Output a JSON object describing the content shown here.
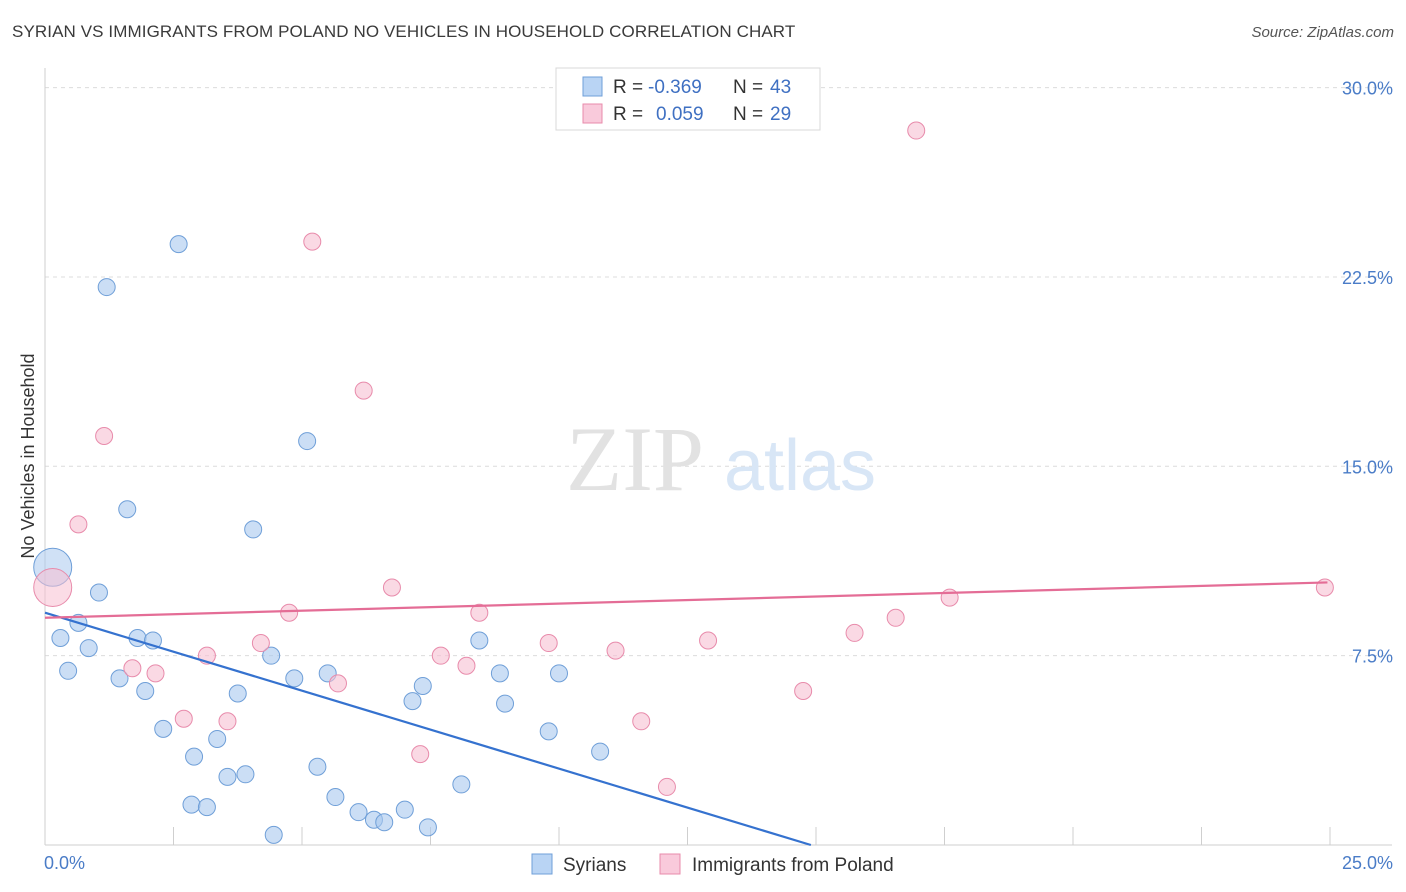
{
  "header": {
    "title": "SYRIAN VS IMMIGRANTS FROM POLAND NO VEHICLES IN HOUSEHOLD CORRELATION CHART",
    "source": "Source: ZipAtlas.com"
  },
  "watermark": {
    "zip": "ZIP",
    "atlas": "atlas"
  },
  "chart_data": {
    "type": "scatter",
    "title": "SYRIAN VS IMMIGRANTS FROM POLAND NO VEHICLES IN HOUSEHOLD CORRELATION CHART",
    "xlabel": "",
    "ylabel": "No Vehicles in Household",
    "xlim": [
      0,
      25
    ],
    "ylim": [
      0,
      30.5
    ],
    "x_tick_labels": {
      "min": "0.0%",
      "max": "25.0%"
    },
    "y_ticks": [
      {
        "value": 7.5,
        "label": "7.5%"
      },
      {
        "value": 15.0,
        "label": "15.0%"
      },
      {
        "value": 22.5,
        "label": "22.5%"
      },
      {
        "value": 30.0,
        "label": "30.0%"
      }
    ],
    "grid": true,
    "legend_position": "top-center",
    "legend": [
      {
        "r_label": "R =",
        "r_value": "-0.369",
        "n_label": "N =",
        "n_value": "43"
      },
      {
        "r_label": "R =",
        "r_value": "0.059",
        "n_label": "N =",
        "n_value": "29"
      }
    ],
    "series": [
      {
        "name": "Syrians",
        "color": "#a9c8ef",
        "edge": "#6f9fd8",
        "trend_color": "#3572cf",
        "trend": {
          "x0": 0.0,
          "y0": 9.2,
          "x1": 14.9,
          "y1": 0.0
        },
        "points": [
          {
            "x": 0.15,
            "y": 11.0,
            "big": true
          },
          {
            "x": 0.3,
            "y": 8.2
          },
          {
            "x": 0.45,
            "y": 6.9
          },
          {
            "x": 0.65,
            "y": 8.8
          },
          {
            "x": 0.85,
            "y": 7.8
          },
          {
            "x": 1.05,
            "y": 10.0
          },
          {
            "x": 1.2,
            "y": 22.1
          },
          {
            "x": 1.45,
            "y": 6.6
          },
          {
            "x": 1.6,
            "y": 13.3
          },
          {
            "x": 1.8,
            "y": 8.2
          },
          {
            "x": 1.95,
            "y": 6.1
          },
          {
            "x": 2.1,
            "y": 8.1
          },
          {
            "x": 2.3,
            "y": 4.6
          },
          {
            "x": 2.6,
            "y": 23.8
          },
          {
            "x": 2.85,
            "y": 1.6
          },
          {
            "x": 2.9,
            "y": 3.5
          },
          {
            "x": 3.15,
            "y": 1.5
          },
          {
            "x": 3.35,
            "y": 4.2
          },
          {
            "x": 3.55,
            "y": 2.7
          },
          {
            "x": 3.75,
            "y": 6.0
          },
          {
            "x": 3.9,
            "y": 2.8
          },
          {
            "x": 4.05,
            "y": 12.5
          },
          {
            "x": 4.4,
            "y": 7.5
          },
          {
            "x": 4.45,
            "y": 0.4
          },
          {
            "x": 4.85,
            "y": 6.6
          },
          {
            "x": 5.1,
            "y": 16.0
          },
          {
            "x": 5.3,
            "y": 3.1
          },
          {
            "x": 5.5,
            "y": 6.8
          },
          {
            "x": 5.65,
            "y": 1.9
          },
          {
            "x": 6.1,
            "y": 1.3
          },
          {
            "x": 6.4,
            "y": 1.0
          },
          {
            "x": 6.6,
            "y": 0.9
          },
          {
            "x": 7.0,
            "y": 1.4
          },
          {
            "x": 7.15,
            "y": 5.7
          },
          {
            "x": 7.35,
            "y": 6.3
          },
          {
            "x": 7.45,
            "y": 0.7
          },
          {
            "x": 8.1,
            "y": 2.4
          },
          {
            "x": 8.45,
            "y": 8.1
          },
          {
            "x": 8.85,
            "y": 6.8
          },
          {
            "x": 8.95,
            "y": 5.6
          },
          {
            "x": 9.8,
            "y": 4.5
          },
          {
            "x": 10.0,
            "y": 6.8
          },
          {
            "x": 10.8,
            "y": 3.7
          }
        ]
      },
      {
        "name": "Immigrants from Poland",
        "color": "#f7bfd2",
        "edge": "#e88bab",
        "trend_color": "#e46d96",
        "trend": {
          "x0": 0.0,
          "y0": 9.0,
          "x1": 24.95,
          "y1": 10.4
        },
        "points": [
          {
            "x": 0.15,
            "y": 10.2,
            "big": true
          },
          {
            "x": 0.65,
            "y": 12.7
          },
          {
            "x": 1.15,
            "y": 16.2
          },
          {
            "x": 1.7,
            "y": 7.0
          },
          {
            "x": 2.15,
            "y": 6.8
          },
          {
            "x": 2.7,
            "y": 5.0
          },
          {
            "x": 3.15,
            "y": 7.5
          },
          {
            "x": 3.55,
            "y": 4.9
          },
          {
            "x": 4.2,
            "y": 8.0
          },
          {
            "x": 4.75,
            "y": 9.2
          },
          {
            "x": 5.2,
            "y": 23.9
          },
          {
            "x": 5.7,
            "y": 6.4
          },
          {
            "x": 6.2,
            "y": 18.0
          },
          {
            "x": 6.75,
            "y": 10.2
          },
          {
            "x": 7.3,
            "y": 3.6
          },
          {
            "x": 7.7,
            "y": 7.5
          },
          {
            "x": 8.2,
            "y": 7.1
          },
          {
            "x": 8.45,
            "y": 9.2
          },
          {
            "x": 9.8,
            "y": 8.0
          },
          {
            "x": 11.1,
            "y": 7.7
          },
          {
            "x": 11.6,
            "y": 4.9
          },
          {
            "x": 12.1,
            "y": 2.3
          },
          {
            "x": 12.9,
            "y": 8.1
          },
          {
            "x": 14.75,
            "y": 6.1
          },
          {
            "x": 15.75,
            "y": 8.4
          },
          {
            "x": 16.55,
            "y": 9.0
          },
          {
            "x": 16.95,
            "y": 28.3
          },
          {
            "x": 17.6,
            "y": 9.8
          },
          {
            "x": 24.9,
            "y": 10.2
          }
        ]
      }
    ]
  }
}
